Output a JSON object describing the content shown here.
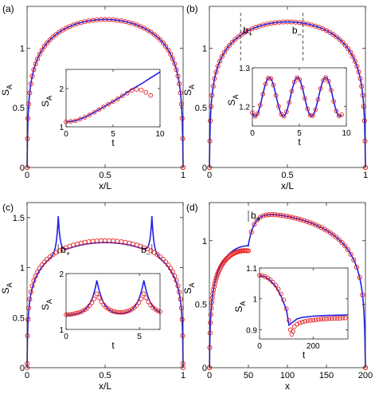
{
  "colors": {
    "theory": "#1f1fe6",
    "numerics": "#e61f1f",
    "axis": "#262626"
  },
  "chart_data": [
    {
      "panel": "(a)",
      "type": "line",
      "xlabel": "x/L",
      "ylabel": "S_A",
      "xlim": [
        0,
        1
      ],
      "ylim": [
        0,
        1.35
      ],
      "xticks": [
        0,
        0.5,
        1
      ],
      "xticklabels": [
        "0",
        "0.5",
        "1"
      ],
      "yticks": [
        0,
        0.5,
        1
      ],
      "yticklabels": [
        "0",
        "0.5",
        "1"
      ],
      "curve": {
        "kind": "arc",
        "peak": 1.24
      },
      "series": [
        {
          "style": "line"
        },
        {
          "style": "markers"
        }
      ],
      "inset": {
        "xlabel": "t",
        "ylabel": "S_A",
        "xlim": [
          0,
          10
        ],
        "ylim": [
          1,
          2.5
        ],
        "xticks": [
          0,
          5,
          10
        ],
        "xticklabels": [
          "0",
          "5",
          "10"
        ],
        "yticks": [
          1,
          2
        ],
        "yticklabels": [
          "1",
          "2"
        ],
        "line": {
          "x": [
            0,
            0.5,
            1,
            2,
            3,
            4,
            5,
            6,
            7,
            8,
            9,
            10
          ],
          "y": [
            1.13,
            1.14,
            1.16,
            1.25,
            1.38,
            1.52,
            1.66,
            1.81,
            1.98,
            2.12,
            2.28,
            2.43
          ]
        },
        "markers": {
          "x": [
            0,
            0.5,
            1,
            1.5,
            2,
            2.5,
            3,
            3.5,
            4,
            4.5,
            5,
            5.5,
            6,
            6.5,
            7,
            7.5,
            8,
            8.5,
            9
          ],
          "y": [
            1.13,
            1.14,
            1.16,
            1.2,
            1.25,
            1.31,
            1.38,
            1.45,
            1.52,
            1.59,
            1.66,
            1.73,
            1.81,
            1.88,
            1.95,
            1.98,
            1.96,
            1.9,
            1.82
          ]
        }
      }
    },
    {
      "panel": "(b)",
      "type": "line",
      "xlabel": "x/L",
      "ylabel": "S_A",
      "xlim": [
        0,
        1
      ],
      "ylim": [
        0,
        1.35
      ],
      "xticks": [
        0,
        0.5,
        1
      ],
      "xticklabels": [
        "0",
        "0.5",
        "1"
      ],
      "yticks": [
        0,
        0.5,
        1
      ],
      "yticklabels": [
        "0",
        "0.5",
        "1"
      ],
      "curve": {
        "kind": "arc",
        "peak": 1.22
      },
      "series": [
        {
          "style": "line"
        },
        {
          "style": "markers"
        }
      ],
      "annotations": [
        {
          "text": "b+",
          "x": 0.2
        },
        {
          "text": "b-",
          "x": 0.6
        }
      ],
      "inset": {
        "xlabel": "t",
        "ylabel": "S_A",
        "xlim": [
          0,
          10
        ],
        "ylim": [
          1.15,
          1.3
        ],
        "xticks": [
          0,
          5,
          10
        ],
        "xticklabels": [
          "0",
          "5",
          "10"
        ],
        "yticks": [
          1.2,
          1.3
        ],
        "yticklabels": [
          "1.2",
          "1.3"
        ],
        "osc": {
          "center": 1.225,
          "amp": 0.05,
          "period": 3.0,
          "phase": 0.0,
          "tmax": 9.5
        }
      }
    },
    {
      "panel": "(c)",
      "type": "line",
      "xlabel": "x/L",
      "ylabel": "S_A",
      "xlim": [
        0,
        1
      ],
      "ylim": [
        0,
        1.65
      ],
      "xticks": [
        0,
        0.5,
        1
      ],
      "xticklabels": [
        "0",
        "0.5",
        "1"
      ],
      "yticks": [
        0,
        0.5,
        1,
        1.5
      ],
      "yticklabels": [
        "0",
        "0.5",
        "1",
        "1.5"
      ],
      "curve": {
        "kind": "plateau",
        "plateau": 1.25,
        "spikes": [
          0.2,
          0.8
        ],
        "spike_height": 1.62
      },
      "series": [
        {
          "style": "line"
        },
        {
          "style": "markers"
        }
      ],
      "annotations": [
        {
          "text": "b+",
          "x": 0.2
        },
        {
          "text": "b-",
          "x": 0.8
        }
      ],
      "inset": {
        "xlabel": "t",
        "ylabel": "S_A",
        "xlim": [
          0,
          6.4
        ],
        "ylim": [
          1,
          2
        ],
        "xticks": [
          0,
          5
        ],
        "xticklabels": [
          "0",
          "5"
        ],
        "yticks": [
          1,
          2
        ],
        "yticklabels": [
          "1",
          "2"
        ],
        "cusps": {
          "base": 1.25,
          "centers": [
            2.1,
            5.3
          ],
          "peak": 1.88
        }
      }
    },
    {
      "panel": "(d)",
      "type": "line",
      "xlabel": "x",
      "ylabel": "S_A",
      "xlim": [
        0,
        200
      ],
      "ylim": [
        0,
        1.3
      ],
      "xticks": [
        0,
        50,
        100,
        150,
        200
      ],
      "xticklabels": [
        "0",
        "50",
        "100",
        "150",
        "200"
      ],
      "yticks": [
        0,
        0.5,
        1
      ],
      "yticklabels": [
        "0",
        "0.5",
        "1"
      ],
      "curve": {
        "kind": "step",
        "split": 50,
        "peak": 1.22
      },
      "series": [
        {
          "style": "line"
        },
        {
          "style": "markers"
        }
      ],
      "annotations": [
        {
          "text": "b+",
          "x": 50
        }
      ],
      "inset": {
        "xlabel": "t",
        "ylabel": "S_A",
        "xlim": [
          0,
          330
        ],
        "ylim": [
          0.87,
          1.1
        ],
        "xticks": [
          0,
          200
        ],
        "xticklabels": [
          "0",
          "200"
        ],
        "yticks": [
          0.9,
          1,
          1.1
        ],
        "yticklabels": [
          "0.9",
          "1",
          "1.1"
        ],
        "line": {
          "x": [
            0,
            20,
            40,
            60,
            80,
            100,
            110,
            120,
            140,
            160,
            200,
            250,
            300,
            330
          ],
          "y": [
            1.075,
            1.072,
            1.06,
            1.04,
            1.01,
            0.965,
            0.915,
            0.922,
            0.935,
            0.94,
            0.944,
            0.946,
            0.947,
            0.948
          ]
        },
        "markers": {
          "x": [
            0,
            10,
            20,
            30,
            40,
            50,
            60,
            70,
            80,
            90,
            100,
            110,
            115,
            120,
            125,
            130,
            140,
            150,
            160,
            170,
            180,
            190,
            200,
            210,
            220,
            230,
            240,
            250,
            260,
            270,
            280,
            290,
            300,
            310,
            320
          ],
          "y": [
            1.076,
            1.075,
            1.072,
            1.068,
            1.062,
            1.054,
            1.044,
            1.032,
            1.016,
            0.996,
            0.968,
            0.93,
            0.9,
            0.885,
            0.895,
            0.91,
            0.918,
            0.922,
            0.925,
            0.927,
            0.929,
            0.93,
            0.931,
            0.932,
            0.933,
            0.934,
            0.935,
            0.935,
            0.936,
            0.936,
            0.937,
            0.937,
            0.937,
            0.938,
            0.938
          ]
        }
      }
    }
  ]
}
